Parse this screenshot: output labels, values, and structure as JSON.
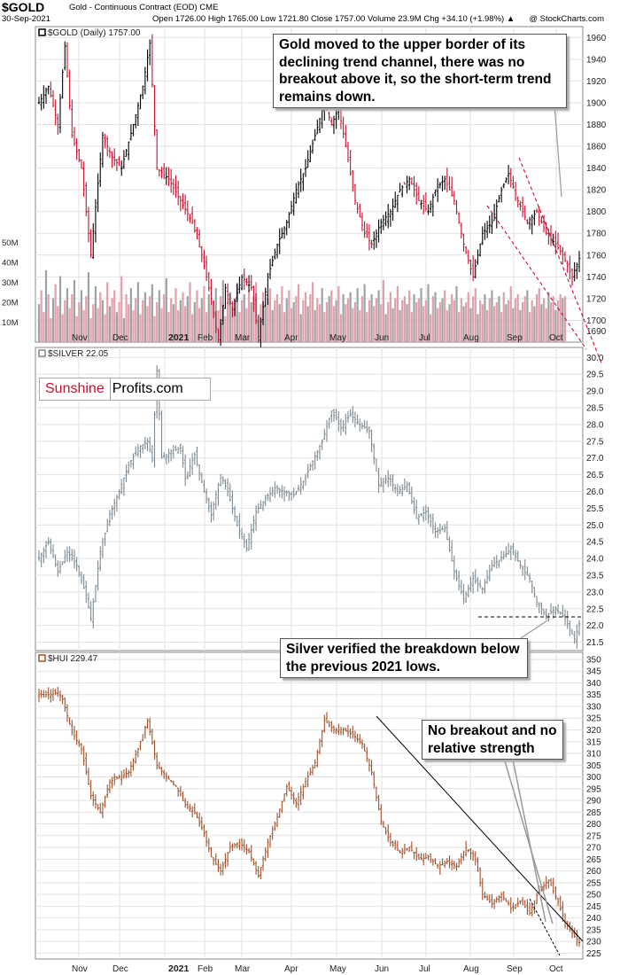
{
  "header": {
    "symbol": "$GOLD",
    "description": "Gold - Continuous Contract (EOD)  CME",
    "date": "30-Sep-2021",
    "ohlc": "Open 1726.00  High 1765.00  Low 1721.80  Close 1757.00  Volume 23.9M  Chg +34.10 (+1.98%) ▲",
    "stockcharts": "@ StockCharts.com"
  },
  "logo": {
    "part1": "Sunshine",
    "part2": "Profits.com"
  },
  "annotations": {
    "gold": "Gold moved to the upper border of its declining trend channel, there was no breakout above it, so the short-term trend remains down.",
    "silver": "Silver verified the breakdown below the previous 2021 lows.",
    "hui": "No breakout and no relative strength"
  },
  "colors": {
    "gold_up": "#000000",
    "gold_down": "#c8102e",
    "silver": "#7d8a93",
    "hui": "#a0522d",
    "trend_dash": "#c8102e",
    "grid": "#e2e2e2"
  },
  "chart_data": [
    {
      "type": "line",
      "legend": "$GOLD (Daily) 1757.00",
      "y_ticks": [
        1690,
        1700,
        1720,
        1740,
        1760,
        1780,
        1800,
        1820,
        1840,
        1860,
        1880,
        1900,
        1920,
        1940,
        1960
      ],
      "volume_ticks": [
        "10M",
        "20M",
        "30M",
        "40M",
        "50M"
      ],
      "x_ticks": [
        "Nov",
        "Dec",
        "2021",
        "Feb",
        "Mar",
        "Apr",
        "May",
        "Jun",
        "Jul",
        "Aug",
        "Sep",
        "Oct"
      ],
      "points": [
        [
          0,
          1900
        ],
        [
          4,
          1915
        ],
        [
          8,
          1880
        ],
        [
          11,
          1952
        ],
        [
          14,
          1870
        ],
        [
          18,
          1840
        ],
        [
          22,
          1760
        ],
        [
          27,
          1870
        ],
        [
          31,
          1850
        ],
        [
          35,
          1840
        ],
        [
          40,
          1880
        ],
        [
          44,
          1915
        ],
        [
          47,
          1955
        ],
        [
          50,
          1840
        ],
        [
          55,
          1830
        ],
        [
          60,
          1810
        ],
        [
          65,
          1790
        ],
        [
          69,
          1760
        ],
        [
          73,
          1720
        ],
        [
          76,
          1680
        ],
        [
          79,
          1730
        ],
        [
          82,
          1710
        ],
        [
          86,
          1740
        ],
        [
          90,
          1730
        ],
        [
          93,
          1685
        ],
        [
          97,
          1740
        ],
        [
          101,
          1770
        ],
        [
          105,
          1790
        ],
        [
          109,
          1820
        ],
        [
          113,
          1840
        ],
        [
          117,
          1870
        ],
        [
          121,
          1900
        ],
        [
          124,
          1880
        ],
        [
          127,
          1895
        ],
        [
          130,
          1860
        ],
        [
          134,
          1810
        ],
        [
          138,
          1780
        ],
        [
          141,
          1770
        ],
        [
          145,
          1790
        ],
        [
          149,
          1800
        ],
        [
          153,
          1820
        ],
        [
          157,
          1830
        ],
        [
          161,
          1810
        ],
        [
          165,
          1800
        ],
        [
          168,
          1820
        ],
        [
          172,
          1830
        ],
        [
          176,
          1810
        ],
        [
          180,
          1770
        ],
        [
          184,
          1740
        ],
        [
          188,
          1780
        ],
        [
          192,
          1790
        ],
        [
          196,
          1820
        ],
        [
          199,
          1835
        ],
        [
          203,
          1810
        ],
        [
          207,
          1790
        ],
        [
          211,
          1800
        ],
        [
          215,
          1780
        ],
        [
          219,
          1770
        ],
        [
          222,
          1760
        ],
        [
          226,
          1740
        ],
        [
          229,
          1757
        ]
      ],
      "volume": [
        19,
        26,
        15,
        36,
        24,
        12,
        22,
        29,
        18,
        33,
        14,
        21,
        27,
        17,
        24,
        31,
        13,
        20,
        26,
        16,
        23,
        35,
        12,
        19,
        28,
        17,
        25,
        21,
        14,
        30,
        18,
        22,
        26,
        15,
        20,
        33,
        12,
        24,
        19,
        27,
        16,
        22,
        30,
        14,
        21,
        25,
        18,
        23,
        29,
        13,
        20,
        26,
        17,
        24,
        32,
        15,
        22,
        19,
        27,
        16,
        21,
        25,
        18,
        23,
        30,
        14,
        20,
        26,
        17,
        22,
        28,
        15,
        24,
        19,
        21,
        27,
        16,
        23,
        31,
        13,
        20,
        25,
        18,
        22,
        29,
        15,
        21,
        24,
        17,
        26,
        20,
        23,
        30,
        14,
        19,
        25,
        18,
        22,
        27,
        16,
        21,
        24,
        19,
        28,
        15,
        22,
        26,
        17,
        20,
        23,
        29,
        14,
        21,
        25,
        18,
        24,
        30,
        16,
        22,
        19,
        27,
        15,
        20,
        23,
        26,
        18,
        21,
        28,
        14,
        24,
        19,
        22,
        25,
        17,
        20,
        27,
        16,
        23,
        29,
        15,
        21,
        24,
        18,
        22,
        26,
        19,
        31,
        14,
        20,
        25,
        17,
        22,
        28,
        16,
        21,
        23,
        19,
        26,
        15,
        24,
        20,
        22,
        27,
        18,
        21,
        29,
        14,
        23,
        25,
        17,
        20,
        22,
        26,
        16,
        19,
        24,
        21,
        28,
        15,
        22,
        18,
        20,
        25,
        17,
        23,
        27,
        14,
        21,
        19,
        24,
        16,
        22,
        26,
        18,
        20,
        23,
        15,
        25,
        19,
        21,
        28,
        17,
        22,
        24,
        16,
        20,
        23,
        26,
        15,
        21,
        18,
        24,
        27,
        19,
        22,
        17,
        25,
        20,
        23,
        16,
        21,
        24,
        22,
        23
      ]
    },
    {
      "type": "line",
      "legend": "$SILVER 22.05",
      "y_ticks": [
        21.5,
        22.0,
        22.5,
        23.0,
        23.5,
        24.0,
        24.5,
        25.0,
        25.5,
        26.0,
        26.5,
        27.0,
        27.5,
        28.0,
        28.5,
        29.0,
        29.5,
        30.0
      ],
      "x_ticks": [
        "Nov",
        "Dec",
        "2021",
        "Feb",
        "Mar",
        "Apr",
        "May",
        "Jun",
        "Jul",
        "Aug",
        "Sep",
        "Oct"
      ],
      "points": [
        [
          0,
          24.0
        ],
        [
          4,
          24.5
        ],
        [
          8,
          23.6
        ],
        [
          12,
          24.2
        ],
        [
          16,
          23.8
        ],
        [
          20,
          22.9
        ],
        [
          22,
          22.2
        ],
        [
          26,
          24.2
        ],
        [
          30,
          25.3
        ],
        [
          34,
          26.0
        ],
        [
          38,
          26.8
        ],
        [
          42,
          27.3
        ],
        [
          46,
          27.5
        ],
        [
          48,
          27.0
        ],
        [
          50,
          29.6
        ],
        [
          52,
          27.0
        ],
        [
          56,
          27.2
        ],
        [
          60,
          27.3
        ],
        [
          62,
          26.4
        ],
        [
          66,
          27.1
        ],
        [
          70,
          26.0
        ],
        [
          73,
          25.3
        ],
        [
          77,
          26.5
        ],
        [
          80,
          26.0
        ],
        [
          84,
          25.0
        ],
        [
          88,
          24.3
        ],
        [
          92,
          25.4
        ],
        [
          96,
          25.8
        ],
        [
          100,
          26.1
        ],
        [
          104,
          26.0
        ],
        [
          108,
          25.9
        ],
        [
          112,
          26.3
        ],
        [
          116,
          26.9
        ],
        [
          120,
          27.5
        ],
        [
          124,
          28.4
        ],
        [
          128,
          27.9
        ],
        [
          132,
          28.3
        ],
        [
          136,
          28.0
        ],
        [
          140,
          27.8
        ],
        [
          144,
          26.2
        ],
        [
          148,
          26.4
        ],
        [
          152,
          26.0
        ],
        [
          156,
          26.2
        ],
        [
          160,
          25.2
        ],
        [
          164,
          25.4
        ],
        [
          168,
          24.8
        ],
        [
          172,
          24.9
        ],
        [
          176,
          23.6
        ],
        [
          180,
          22.8
        ],
        [
          184,
          23.4
        ],
        [
          188,
          23.1
        ],
        [
          192,
          23.8
        ],
        [
          196,
          24.0
        ],
        [
          200,
          24.3
        ],
        [
          204,
          23.8
        ],
        [
          208,
          23.4
        ],
        [
          211,
          22.7
        ],
        [
          215,
          22.3
        ],
        [
          219,
          22.5
        ],
        [
          223,
          22.2
        ],
        [
          227,
          21.6
        ],
        [
          229,
          22.05
        ]
      ]
    },
    {
      "type": "line",
      "legend": "$HUI 229.47",
      "y_ticks": [
        225,
        230,
        235,
        240,
        245,
        250,
        255,
        260,
        265,
        270,
        275,
        280,
        285,
        290,
        295,
        300,
        305,
        310,
        315,
        320,
        325,
        330,
        335,
        340,
        345,
        350
      ],
      "x_ticks": [
        "Nov",
        "Dec",
        "2021",
        "Feb",
        "Mar",
        "Apr",
        "May",
        "Jun",
        "Jul",
        "Aug",
        "Sep",
        "Oct"
      ],
      "points": [
        [
          0,
          335
        ],
        [
          4,
          335
        ],
        [
          8,
          336
        ],
        [
          10,
          333
        ],
        [
          14,
          319
        ],
        [
          18,
          312
        ],
        [
          22,
          292
        ],
        [
          26,
          285
        ],
        [
          30,
          298
        ],
        [
          34,
          300
        ],
        [
          38,
          302
        ],
        [
          42,
          312
        ],
        [
          46,
          324
        ],
        [
          50,
          305
        ],
        [
          54,
          300
        ],
        [
          58,
          296
        ],
        [
          62,
          288
        ],
        [
          66,
          285
        ],
        [
          70,
          276
        ],
        [
          73,
          266
        ],
        [
          77,
          260
        ],
        [
          81,
          270
        ],
        [
          85,
          272
        ],
        [
          89,
          268
        ],
        [
          93,
          258
        ],
        [
          97,
          272
        ],
        [
          101,
          283
        ],
        [
          105,
          296
        ],
        [
          109,
          289
        ],
        [
          113,
          298
        ],
        [
          117,
          306
        ],
        [
          121,
          324
        ],
        [
          125,
          320
        ],
        [
          129,
          320
        ],
        [
          133,
          318
        ],
        [
          137,
          314
        ],
        [
          141,
          302
        ],
        [
          145,
          281
        ],
        [
          149,
          272
        ],
        [
          153,
          268
        ],
        [
          157,
          270
        ],
        [
          161,
          265
        ],
        [
          165,
          266
        ],
        [
          169,
          262
        ],
        [
          173,
          264
        ],
        [
          177,
          262
        ],
        [
          181,
          270
        ],
        [
          185,
          265
        ],
        [
          188,
          250
        ],
        [
          192,
          246
        ],
        [
          196,
          250
        ],
        [
          200,
          244
        ],
        [
          204,
          247
        ],
        [
          208,
          242
        ],
        [
          212,
          252
        ],
        [
          216,
          256
        ],
        [
          220,
          247
        ],
        [
          223,
          238
        ],
        [
          227,
          232
        ],
        [
          229,
          229.47
        ]
      ]
    }
  ]
}
